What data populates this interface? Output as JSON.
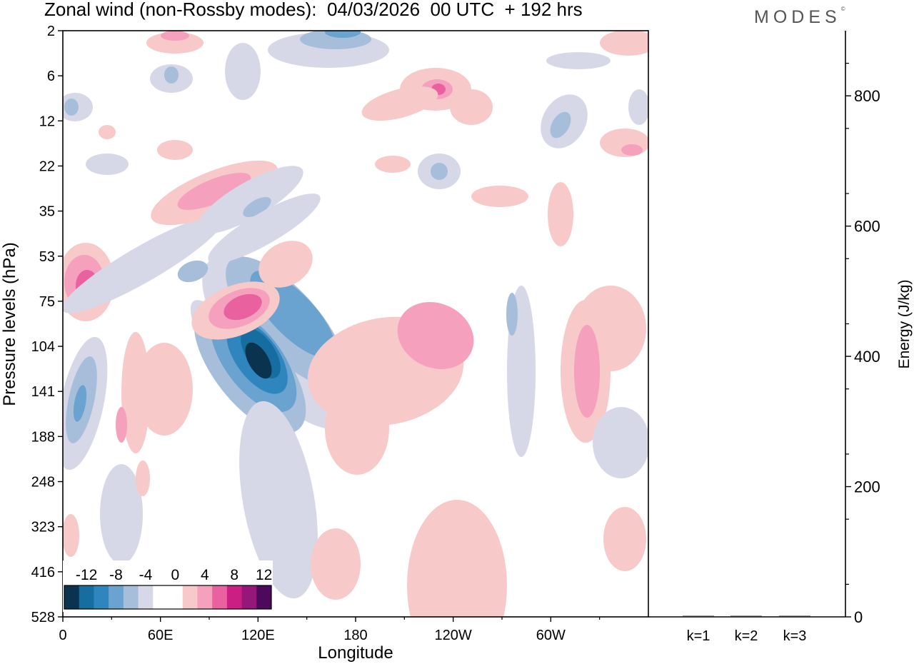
{
  "header": {
    "title": "Zonal wind (non-Rossby modes):  04/03/2026  00 UTC  + 192 hrs",
    "logo_text": "MODES",
    "logo_mark": "©"
  },
  "chart_data": [
    {
      "type": "heatmap",
      "title": "Zonal wind (non-Rossby modes):  04/03/2026  00 UTC  + 192 hrs",
      "xlabel": "Longitude",
      "ylabel": "Pressure levels (hPa)",
      "x_ticks": [
        "0",
        "60E",
        "120E",
        "180",
        "120W",
        "60W"
      ],
      "x_tick_degrees": [
        0,
        60,
        120,
        180,
        240,
        300
      ],
      "xlim": [
        0,
        360
      ],
      "y_ticks": [
        "2",
        "6",
        "12",
        "22",
        "35",
        "53",
        "75",
        "104",
        "141",
        "188",
        "248",
        "323",
        "416",
        "528"
      ],
      "y_order": "top-to-bottom",
      "colorbar": {
        "labels": [
          "-12",
          "-8",
          "-4",
          "0",
          "4",
          "8",
          "12"
        ],
        "colors": [
          "#0a3350",
          "#166ea0",
          "#2f86bf",
          "#6aa3cf",
          "#a7bedb",
          "#d6d8e8",
          "#ffffff",
          "#ffffff",
          "#f8c9c9",
          "#f5a0bd",
          "#e9619f",
          "#cc1f84",
          "#951779",
          "#4d0a5c"
        ]
      },
      "features": [
        {
          "sign": "negative",
          "lon": 120,
          "level": "104-141",
          "peak": -14,
          "desc": "strong easterly core tilting from 120E/141hPa to 160E/75hPa"
        },
        {
          "sign": "positive",
          "lon": 110,
          "level": "75",
          "peak": 10
        },
        {
          "sign": "positive",
          "lon": 15,
          "level": "53-75",
          "peak": 10
        },
        {
          "sign": "negative",
          "lon": 10,
          "level": "141",
          "peak": -8
        },
        {
          "sign": "positive",
          "lon": 225,
          "level": "6",
          "peak": 8
        },
        {
          "sign": "positive",
          "lon": 320,
          "level": "104-141",
          "peak": 6
        },
        {
          "sign": "positive",
          "lon": 240,
          "level": "104",
          "peak": 6
        }
      ]
    },
    {
      "type": "bar",
      "ylabel": "Energy (J/kg)",
      "categories": [
        "k=1",
        "k=2",
        "k=3"
      ],
      "values": [
        1,
        1,
        1
      ],
      "ylim": [
        0,
        900
      ],
      "y_ticks": [
        "0",
        "200",
        "400",
        "600",
        "800"
      ]
    }
  ]
}
